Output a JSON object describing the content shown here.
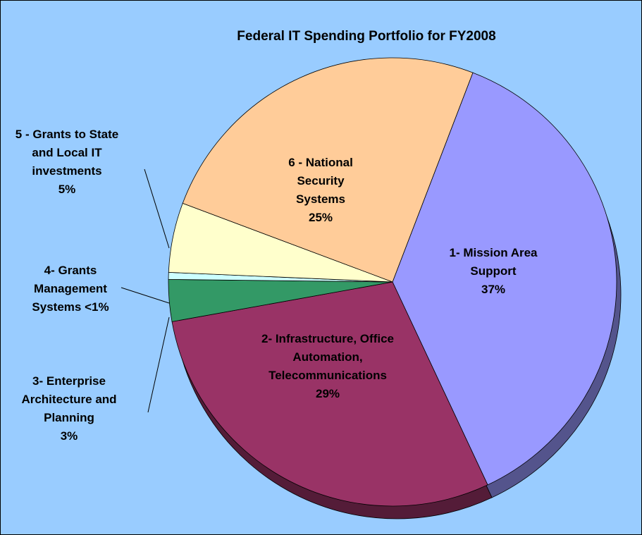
{
  "chart_data": {
    "type": "pie",
    "title": "Federal IT Spending Portfolio for FY2008",
    "categories": [
      "1- Mission Area Support",
      "2- Infrastructure, Office Automation, Telecommunications",
      "3- Enterprise Architecture and Planning",
      "4- Grants Management Systems",
      "5 - Grants to State and Local IT investments",
      "6 - National Security Systems"
    ],
    "values": [
      37,
      29,
      3,
      0.5,
      5,
      25
    ],
    "value_labels": [
      "37%",
      "29%",
      "3%",
      "<1%",
      "5%",
      "25%"
    ],
    "colors": [
      "#9999ff",
      "#993366",
      "#339966",
      "#ccffff",
      "#ffffcc",
      "#ffcc99"
    ]
  }
}
